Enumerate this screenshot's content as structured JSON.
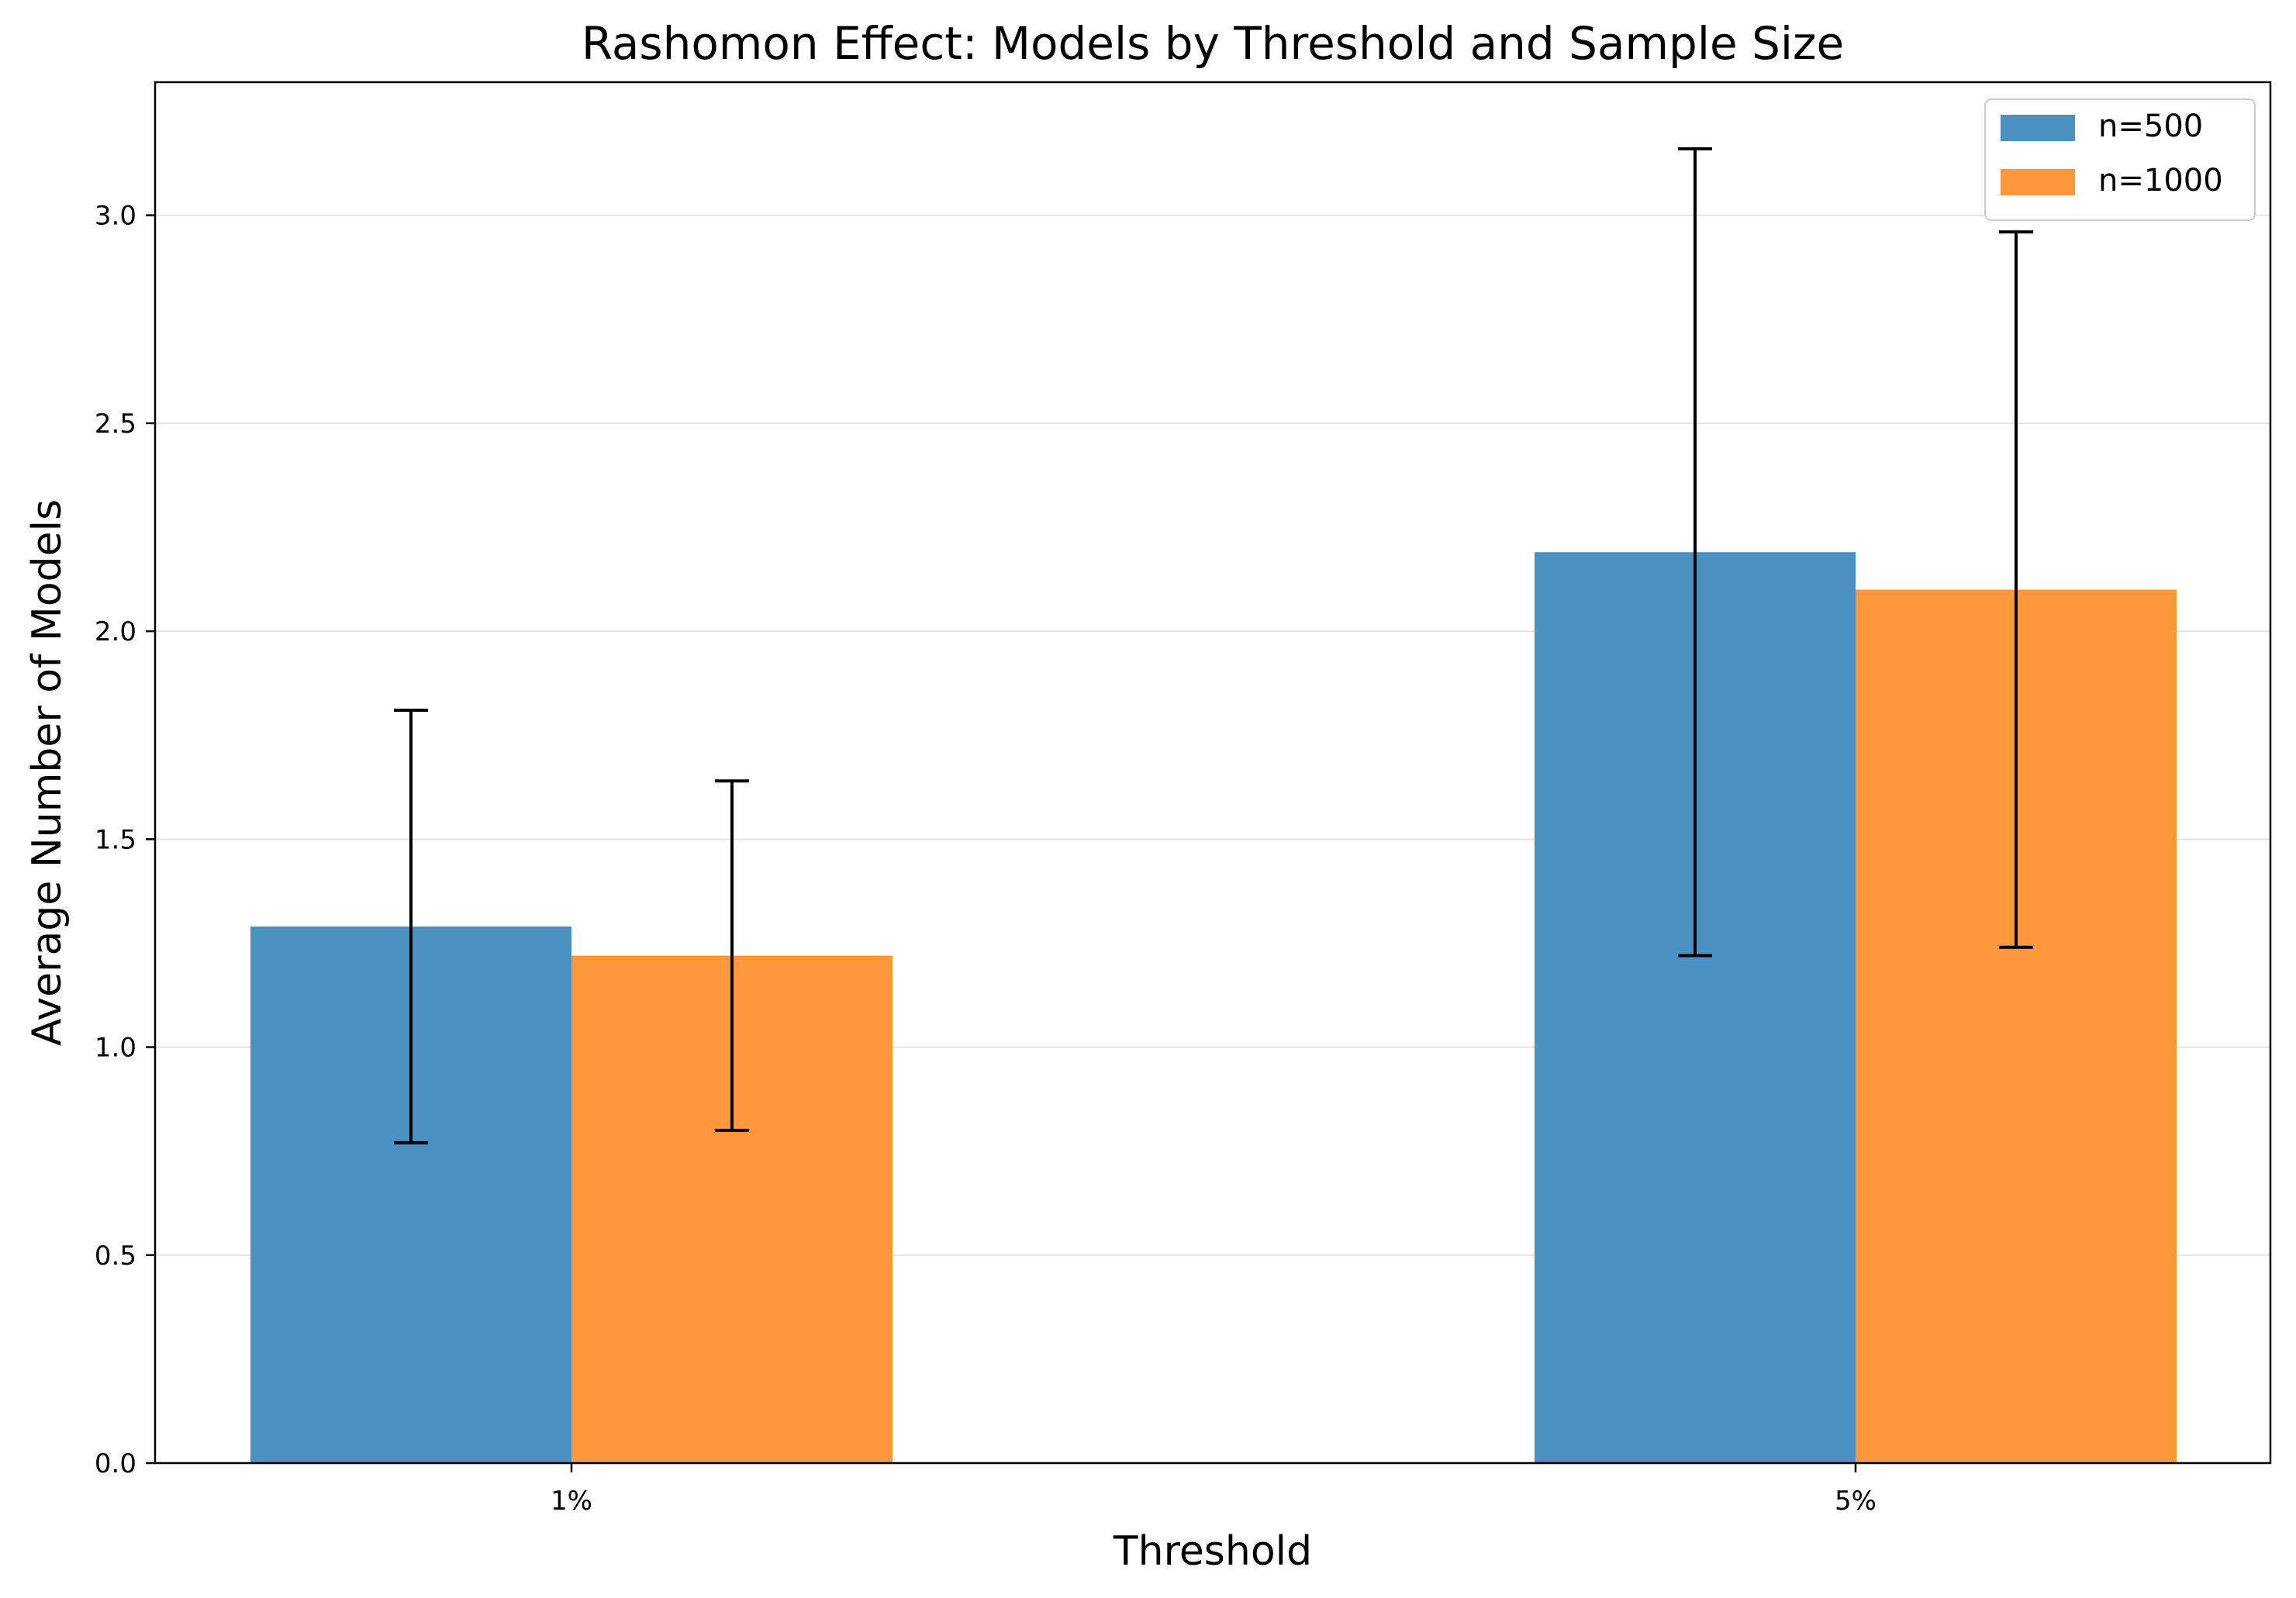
{
  "chart_data": {
    "type": "bar",
    "title": "Rashomon Effect: Models by Threshold and Sample Size",
    "xlabel": "Threshold",
    "ylabel": "Average Number of Models",
    "categories": [
      "1%",
      "5%"
    ],
    "series": [
      {
        "name": "n=500",
        "color": "#4b91c2",
        "values": [
          1.29,
          2.19
        ],
        "errors": [
          0.52,
          0.97
        ]
      },
      {
        "name": "n=1000",
        "color": "#ff983d",
        "values": [
          1.22,
          2.1
        ],
        "errors": [
          0.42,
          0.86
        ]
      }
    ],
    "ylim": [
      0,
      3.32
    ],
    "yticks": [
      0.0,
      0.5,
      1.0,
      1.5,
      2.0,
      2.5,
      3.0
    ],
    "ytick_labels": [
      "0.0",
      "0.5",
      "1.0",
      "1.5",
      "2.0",
      "2.5",
      "3.0"
    ],
    "grid": "horizontal",
    "legend_position": "top-right"
  }
}
